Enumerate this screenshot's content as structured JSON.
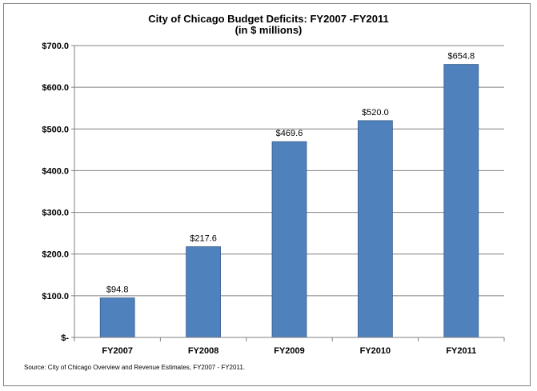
{
  "chart_data": {
    "type": "bar",
    "title": "City of Chicago Budget Deficits: FY2007 -FY2011",
    "subtitle": "(in $ millions)",
    "categories": [
      "FY2007",
      "FY2008",
      "FY2009",
      "FY2010",
      "FY2011"
    ],
    "values": [
      94.8,
      217.6,
      469.6,
      520.0,
      654.8
    ],
    "data_labels": [
      "$94.8",
      "$217.6",
      "$469.6",
      "$520.0",
      "$654.8"
    ],
    "ylim": [
      0,
      700
    ],
    "yticks": [
      0,
      100,
      200,
      300,
      400,
      500,
      600,
      700
    ],
    "ytick_labels": [
      "$-",
      "$100.0",
      "$200.0",
      "$300.0",
      "$400.0",
      "$500.0",
      "$600.0",
      "$700.0"
    ],
    "xlabel": "",
    "ylabel": "",
    "grid": true,
    "bar_color": "#4f81bd"
  },
  "source": "Source:   City of Chicago Overview and Revenue Estimates, FY2007 - FY2011."
}
